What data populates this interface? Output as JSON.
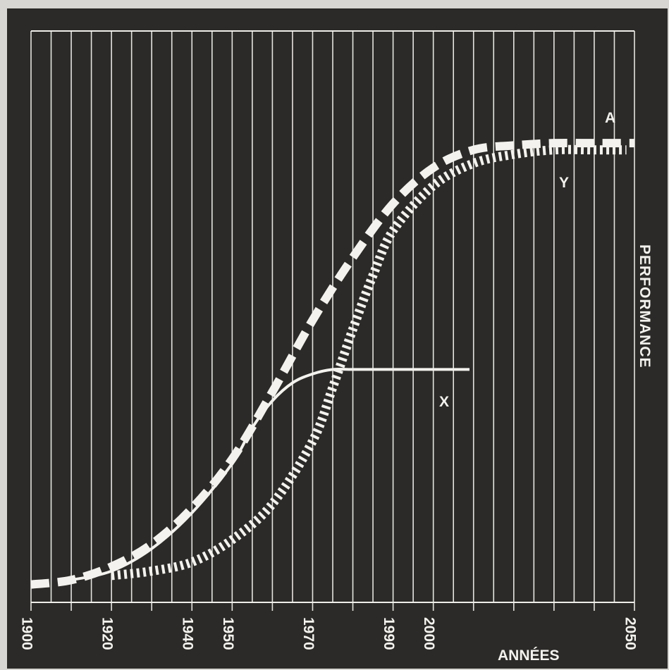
{
  "chart_data": {
    "type": "line",
    "title": "",
    "xlabel": "ANNÉES",
    "ylabel": "PERFORMANCE",
    "xlim": [
      1900,
      2050
    ],
    "ylim": [
      0,
      100
    ],
    "grid": true,
    "x_tick_labels": [
      "1900",
      "1920",
      "1940",
      "1950",
      "1970",
      "1990",
      "2000",
      "2050"
    ],
    "series": [
      {
        "name": "A",
        "style": "dashed",
        "x": [
          1900,
          1910,
          1920,
          1930,
          1940,
          1950,
          1960,
          1970,
          1980,
          1990,
          2000,
          2010,
          2020,
          2030,
          2040,
          2050
        ],
        "y": [
          1,
          2,
          5,
          10,
          18,
          29,
          44,
          60,
          74,
          86,
          94,
          98,
          99,
          99.5,
          99.5,
          99.5
        ]
      },
      {
        "name": "Y",
        "style": "dotted",
        "x": [
          1920,
          1930,
          1940,
          1950,
          1960,
          1970,
          1975,
          1980,
          1985,
          1990,
          2000,
          2010,
          2020,
          2030,
          2040,
          2048
        ],
        "y": [
          3,
          4,
          6,
          11,
          19,
          33,
          45,
          58,
          70,
          80,
          90,
          95,
          97,
          98,
          98,
          98
        ]
      },
      {
        "name": "X",
        "style": "solid",
        "x": [
          1910,
          1920,
          1930,
          1940,
          1950,
          1955,
          1960,
          1965,
          1970,
          1975,
          1980,
          1990,
          2000,
          2009
        ],
        "y": [
          2,
          4,
          9,
          17,
          28,
          36,
          42,
          46,
          48,
          49,
          49,
          49,
          49,
          49
        ]
      }
    ]
  },
  "colors": {
    "background": "#2b2a28",
    "lines": "#f4f2ee",
    "frame": "#d8d6d2"
  }
}
